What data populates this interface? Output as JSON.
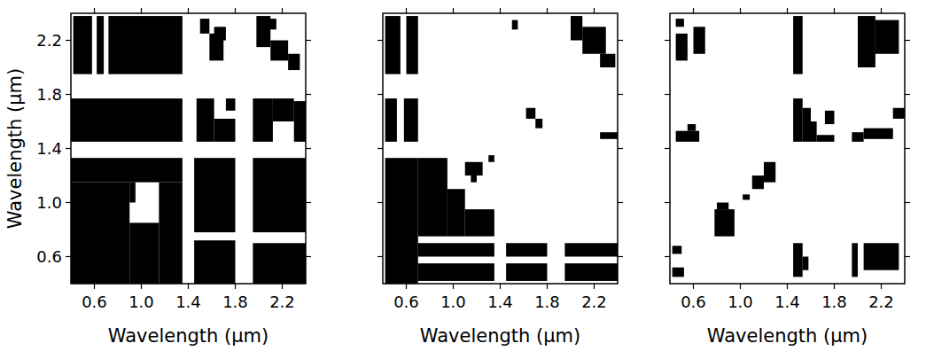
{
  "chart_data": [
    {
      "type": "heatmap",
      "x_label": "Wavelength (μm)",
      "y_label": "Wavelength (μm)",
      "color": "#000000",
      "xlim": [
        0.4,
        2.4
      ],
      "ylim": [
        0.4,
        2.4
      ],
      "xticks": [
        0.6,
        {
          "value": 1.0,
          "label": "1.0"
        },
        1.4,
        1.8,
        2.2
      ],
      "yticks": [
        0.6,
        {
          "value": 1.0,
          "label": "1.0"
        },
        1.4,
        1.8,
        2.2
      ],
      "cells": [
        [
          0.42,
          0.58,
          1.95,
          2.38
        ],
        [
          0.62,
          0.68,
          1.95,
          2.38
        ],
        [
          0.72,
          1.35,
          1.95,
          2.38
        ],
        [
          1.5,
          1.58,
          2.25,
          2.36
        ],
        [
          1.58,
          1.7,
          2.05,
          2.25
        ],
        [
          1.62,
          1.72,
          2.2,
          2.3
        ],
        [
          1.98,
          2.1,
          2.15,
          2.38
        ],
        [
          2.1,
          2.25,
          2.05,
          2.2
        ],
        [
          2.25,
          2.35,
          1.98,
          2.1
        ],
        [
          2.05,
          2.15,
          2.28,
          2.36
        ],
        [
          0.4,
          1.35,
          1.45,
          1.77
        ],
        [
          1.47,
          1.62,
          1.45,
          1.77
        ],
        [
          1.62,
          1.8,
          1.45,
          1.62
        ],
        [
          1.72,
          1.8,
          1.68,
          1.77
        ],
        [
          1.95,
          2.12,
          1.45,
          1.77
        ],
        [
          2.12,
          2.3,
          1.6,
          1.77
        ],
        [
          2.3,
          2.4,
          1.45,
          1.75
        ],
        [
          0.4,
          1.35,
          1.15,
          1.33
        ],
        [
          0.4,
          0.9,
          0.4,
          1.15
        ],
        [
          1.15,
          1.35,
          0.4,
          1.15
        ],
        [
          0.9,
          1.15,
          0.4,
          0.85
        ],
        [
          0.9,
          0.95,
          1.0,
          1.15
        ],
        [
          1.45,
          1.8,
          0.78,
          1.33
        ],
        [
          1.45,
          1.8,
          0.4,
          0.72
        ],
        [
          1.95,
          2.4,
          0.78,
          1.33
        ],
        [
          1.95,
          2.4,
          0.4,
          0.7
        ]
      ]
    },
    {
      "type": "heatmap",
      "x_label": "Wavelength (μm)",
      "color": "#000000",
      "tick_labels": "x",
      "xlim": [
        0.4,
        2.4
      ],
      "ylim": [
        0.4,
        2.4
      ],
      "xticks": [
        0.6,
        {
          "value": 1.0,
          "label": "1.0"
        },
        1.4,
        1.8,
        2.2
      ],
      "yticks": [
        0.6,
        1.0,
        1.4,
        1.8,
        2.2
      ],
      "cells": [
        [
          0.42,
          0.55,
          1.95,
          2.38
        ],
        [
          0.6,
          0.7,
          1.95,
          2.38
        ],
        [
          0.42,
          0.52,
          1.45,
          1.77
        ],
        [
          0.58,
          0.7,
          1.45,
          1.77
        ],
        [
          0.42,
          0.7,
          0.4,
          1.33
        ],
        [
          0.7,
          0.95,
          0.75,
          1.33
        ],
        [
          0.95,
          1.1,
          0.75,
          1.1
        ],
        [
          1.1,
          1.35,
          0.75,
          0.95
        ],
        [
          1.1,
          1.25,
          1.2,
          1.3
        ],
        [
          1.15,
          1.2,
          1.15,
          1.2
        ],
        [
          1.3,
          1.35,
          1.3,
          1.35
        ],
        [
          0.7,
          1.35,
          0.6,
          0.7
        ],
        [
          0.7,
          1.35,
          0.42,
          0.55
        ],
        [
          1.45,
          1.8,
          0.6,
          0.7
        ],
        [
          1.45,
          1.8,
          0.42,
          0.55
        ],
        [
          1.95,
          2.4,
          0.6,
          0.7
        ],
        [
          1.95,
          2.4,
          0.42,
          0.55
        ],
        [
          1.62,
          1.7,
          1.62,
          1.7
        ],
        [
          1.7,
          1.76,
          1.55,
          1.62
        ],
        [
          2.25,
          2.4,
          1.47,
          1.52
        ],
        [
          2.0,
          2.1,
          2.2,
          2.38
        ],
        [
          2.1,
          2.3,
          2.1,
          2.3
        ],
        [
          2.25,
          2.38,
          2.0,
          2.1
        ],
        [
          1.5,
          1.55,
          2.28,
          2.35
        ]
      ]
    },
    {
      "type": "heatmap",
      "x_label": "Wavelength (μm)",
      "color": "#000000",
      "tick_labels": "x",
      "xlim": [
        0.4,
        2.4
      ],
      "ylim": [
        0.4,
        2.4
      ],
      "xticks": [
        0.6,
        {
          "value": 1.0,
          "label": "1.0"
        },
        1.4,
        1.8,
        2.2
      ],
      "yticks": [
        0.6,
        1.0,
        1.4,
        1.8,
        2.2
      ],
      "cells": [
        [
          0.45,
          0.55,
          2.05,
          2.25
        ],
        [
          0.6,
          0.7,
          2.1,
          2.3
        ],
        [
          0.45,
          0.52,
          2.3,
          2.36
        ],
        [
          0.45,
          0.65,
          1.45,
          1.53
        ],
        [
          0.55,
          0.62,
          1.53,
          1.58
        ],
        [
          1.45,
          1.53,
          1.95,
          2.38
        ],
        [
          1.45,
          1.53,
          1.45,
          1.77
        ],
        [
          1.53,
          1.65,
          1.45,
          1.6
        ],
        [
          1.65,
          1.8,
          1.45,
          1.5
        ],
        [
          1.53,
          1.6,
          1.6,
          1.7
        ],
        [
          1.72,
          1.8,
          1.58,
          1.68
        ],
        [
          1.95,
          2.05,
          1.45,
          1.52
        ],
        [
          2.05,
          2.3,
          1.47,
          1.55
        ],
        [
          2.3,
          2.4,
          1.62,
          1.7
        ],
        [
          2.0,
          2.15,
          2.0,
          2.38
        ],
        [
          2.15,
          2.35,
          2.1,
          2.35
        ],
        [
          0.78,
          0.95,
          0.75,
          0.95
        ],
        [
          0.8,
          0.9,
          0.95,
          1.0
        ],
        [
          1.1,
          1.2,
          1.1,
          1.2
        ],
        [
          1.2,
          1.3,
          1.15,
          1.3
        ],
        [
          1.02,
          1.08,
          1.02,
          1.06
        ],
        [
          1.45,
          1.53,
          0.45,
          0.7
        ],
        [
          1.53,
          1.58,
          0.5,
          0.6
        ],
        [
          1.95,
          2.0,
          0.45,
          0.7
        ],
        [
          2.05,
          2.35,
          0.5,
          0.7
        ],
        [
          0.42,
          0.52,
          0.45,
          0.52
        ],
        [
          0.42,
          0.5,
          0.62,
          0.68
        ]
      ]
    }
  ]
}
